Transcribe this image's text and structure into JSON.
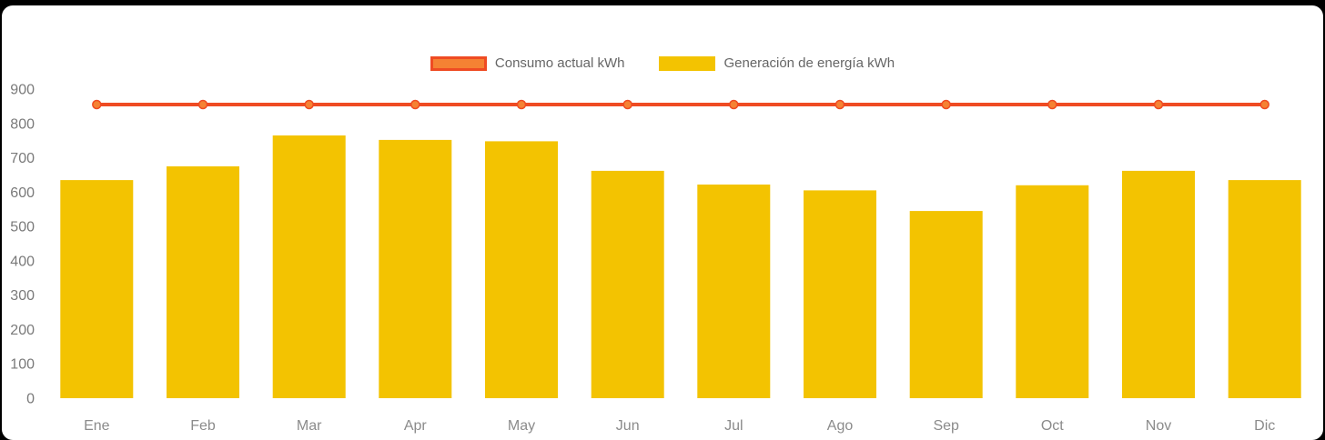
{
  "chart_data": {
    "type": "bar",
    "title": "",
    "categories": [
      "Ene",
      "Feb",
      "Mar",
      "Apr",
      "May",
      "Jun",
      "Jul",
      "Ago",
      "Sep",
      "Oct",
      "Nov",
      "Dic"
    ],
    "series": [
      {
        "name": "Consumo actual kWh",
        "type": "line",
        "values": [
          855,
          855,
          855,
          855,
          855,
          855,
          855,
          855,
          855,
          855,
          855,
          855
        ],
        "line_color": "#ef4b23",
        "point_color": "#f58233"
      },
      {
        "name": "Generación de energía kWh",
        "type": "bar",
        "values": [
          635,
          675,
          765,
          752,
          748,
          662,
          622,
          605,
          545,
          620,
          662,
          635
        ],
        "color": "#f3c301"
      }
    ],
    "xlabel": "",
    "ylabel": "",
    "ylim": [
      0,
      900
    ],
    "yticks": [
      0,
      100,
      200,
      300,
      400,
      500,
      600,
      700,
      800,
      900
    ],
    "grid": false,
    "legend_position": "top"
  },
  "colors": {
    "background": "#ffffff",
    "bar_yellow": "#f3c301",
    "line_red": "#ef4b23",
    "point_orange": "#f58233",
    "axis_text": "#7a7a7a"
  }
}
